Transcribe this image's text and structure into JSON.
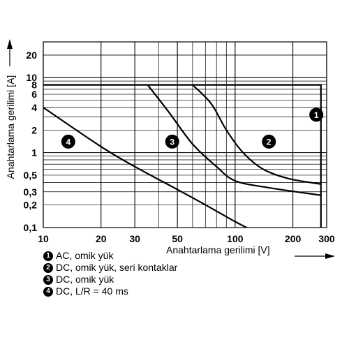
{
  "chart_data": {
    "type": "line",
    "xscale": "log",
    "yscale": "log",
    "xlim": [
      10,
      300
    ],
    "ylim": [
      0.1,
      30
    ],
    "grid": true,
    "xlabel": "Anahtarlama gerilimi [V]",
    "ylabel": "Anahtarlama gerilimi [A]",
    "x_ticks": [
      {
        "value": 10,
        "label": "10"
      },
      {
        "value": 20,
        "label": "20"
      },
      {
        "value": 30,
        "label": "30"
      },
      {
        "value": 50,
        "label": "50"
      },
      {
        "value": 100,
        "label": "100"
      },
      {
        "value": 200,
        "label": "200"
      },
      {
        "value": 300,
        "label": "300"
      }
    ],
    "y_ticks": [
      {
        "value": 0.1,
        "label": "0,1"
      },
      {
        "value": 0.2,
        "label": "0,2"
      },
      {
        "value": 0.3,
        "label": "0,3"
      },
      {
        "value": 0.5,
        "label": "0,5"
      },
      {
        "value": 1,
        "label": "1"
      },
      {
        "value": 2,
        "label": "2"
      },
      {
        "value": 4,
        "label": "4"
      },
      {
        "value": 6,
        "label": "6"
      },
      {
        "value": 8,
        "label": "8"
      },
      {
        "value": 10,
        "label": "10"
      },
      {
        "value": 20,
        "label": "20"
      }
    ],
    "series": [
      {
        "marker": "1",
        "points": [
          [
            10,
            8
          ],
          [
            280,
            8
          ],
          [
            280,
            0.1
          ]
        ]
      },
      {
        "marker": "2",
        "points": [
          [
            60,
            8
          ],
          [
            75,
            4.5
          ],
          [
            90,
            2
          ],
          [
            110,
            1
          ],
          [
            140,
            0.6
          ],
          [
            190,
            0.45
          ],
          [
            280,
            0.38
          ]
        ]
      },
      {
        "marker": "3",
        "points": [
          [
            35,
            8
          ],
          [
            45,
            3.5
          ],
          [
            60,
            1.3
          ],
          [
            80,
            0.65
          ],
          [
            100,
            0.42
          ],
          [
            150,
            0.34
          ],
          [
            280,
            0.27
          ]
        ]
      },
      {
        "marker": "4",
        "points": [
          [
            10,
            4
          ],
          [
            20,
            1.2
          ],
          [
            30,
            0.65
          ],
          [
            60,
            0.25
          ],
          [
            100,
            0.12
          ],
          [
            115,
            0.1
          ]
        ]
      }
    ],
    "markers": [
      {
        "label": "1",
        "x": 265,
        "y": 3.2
      },
      {
        "label": "2",
        "x": 150,
        "y": 1.4
      },
      {
        "label": "3",
        "x": 47,
        "y": 1.4
      },
      {
        "label": "4",
        "x": 13.5,
        "y": 1.4
      }
    ],
    "legend": [
      {
        "marker": "1",
        "text": "AC, omik yük"
      },
      {
        "marker": "2",
        "text": "DC, omik yük, seri kontaklar"
      },
      {
        "marker": "3",
        "text": "DC, omik yük"
      },
      {
        "marker": "4",
        "text": "DC, L/R = 40 ms"
      }
    ]
  }
}
